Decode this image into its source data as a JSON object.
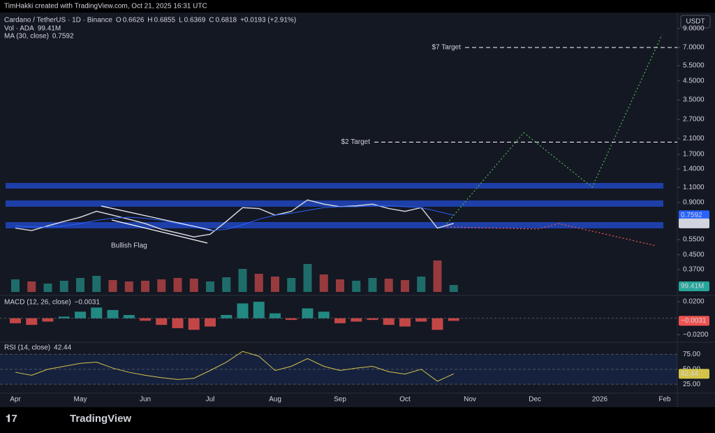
{
  "header": {
    "watermark": "TimHakki created with TradingView.com, Oct 21, 2025 16:31 UTC",
    "ohlc": [
      {
        "label": "O",
        "value": 0.6626
      },
      {
        "label": "H",
        "value": 0.6855
      },
      {
        "label": "L",
        "value": 0.6369
      },
      {
        "label": "C",
        "value": 0.6818
      }
    ],
    "change": "+0.0193 (+2.91%)",
    "vol_label": "Vol · ADA",
    "vol_value": "99.41M",
    "ma_value": 0.7592,
    "currency": "USDT",
    "logo": "TradingView"
  },
  "chart_data": [
    {
      "type": "line",
      "log": true,
      "categories": [
        "Apr",
        null,
        null,
        null,
        "May",
        null,
        null,
        null,
        "Jun",
        null,
        null,
        null,
        "Jul",
        null,
        null,
        null,
        "Aug",
        null,
        null,
        null,
        "Sep",
        null,
        null,
        null,
        "Oct",
        null,
        null,
        null,
        "Nov",
        null,
        null,
        null,
        "Dec",
        null,
        null,
        null,
        "2026",
        null,
        null,
        null,
        "Feb"
      ],
      "series": [
        {
          "name": "Cardano / TetherUS · 1D · Binance",
          "color": "#d1d4dc",
          "values": [
            0.64,
            0.62,
            0.66,
            0.7,
            0.74,
            0.8,
            0.76,
            0.72,
            0.68,
            0.63,
            0.6,
            0.57,
            0.59,
            0.7,
            0.84,
            0.83,
            0.76,
            0.8,
            0.93,
            0.88,
            0.85,
            0.86,
            0.88,
            0.83,
            0.8,
            0.84,
            0.64,
            0.6818,
            null,
            null,
            null,
            null,
            null,
            null,
            null,
            null,
            null,
            null,
            null,
            null,
            null
          ]
        },
        {
          "name": "MA (30, close)",
          "color": "#2962ff",
          "values": [
            0.66,
            0.65,
            0.65,
            0.66,
            0.68,
            0.71,
            0.73,
            0.74,
            0.73,
            0.71,
            0.68,
            0.65,
            0.62,
            0.63,
            0.67,
            0.72,
            0.76,
            0.78,
            0.81,
            0.84,
            0.85,
            0.85,
            0.86,
            0.86,
            0.85,
            0.84,
            0.8,
            0.7592,
            null,
            null,
            null,
            null,
            null,
            null,
            null,
            null,
            null,
            null,
            null,
            null,
            null
          ]
        }
      ],
      "ylim": [
        0.27,
        9.5
      ],
      "yticks": [
        {
          "value": 9,
          "label": "9.0000"
        },
        {
          "value": 7,
          "label": "7.0000"
        },
        {
          "value": 5.5,
          "label": "5.5000"
        },
        {
          "value": 4.5,
          "label": "4.5000"
        },
        {
          "value": 3.5,
          "label": "3.5000"
        },
        {
          "value": 2.7,
          "label": "2.7000"
        },
        {
          "value": 2.1,
          "label": "2.1000"
        },
        {
          "value": 1.7,
          "label": "1.7000"
        },
        {
          "value": 1.4,
          "label": "1.4000"
        },
        {
          "value": 1.1,
          "label": "1.1000"
        },
        {
          "value": 0.9,
          "label": "0.9000"
        },
        {
          "value": 0.55,
          "label": "0.5500"
        },
        {
          "value": 0.45,
          "label": "0.4500"
        },
        {
          "value": 0.37,
          "label": "0.3700"
        }
      ],
      "annotations": [
        {
          "text": "$7 Target",
          "value": 7
        },
        {
          "text": "$2 Target",
          "value": 2
        },
        {
          "text": "Bullish Flag"
        }
      ]
    },
    {
      "type": "bar",
      "up_color": "#26a69a",
      "down_color": "#ef5350",
      "values": [
        180,
        150,
        120,
        160,
        200,
        230,
        170,
        150,
        160,
        180,
        200,
        190,
        150,
        210,
        330,
        260,
        220,
        200,
        400,
        250,
        180,
        160,
        200,
        190,
        170,
        220,
        450,
        99.41
      ],
      "ylim": [
        0,
        500
      ]
    },
    {
      "type": "bar",
      "title": "MACD (12, 26, close)",
      "current": "−0.0031",
      "up_color": "#26a69a",
      "down_color": "#ef5350",
      "values": [
        -0.006,
        -0.008,
        -0.004,
        0.002,
        0.008,
        0.013,
        0.01,
        0.004,
        -0.003,
        -0.008,
        -0.012,
        -0.014,
        -0.01,
        0.004,
        0.018,
        0.02,
        0.006,
        -0.002,
        0.012,
        0.008,
        -0.006,
        -0.004,
        -0.002,
        -0.008,
        -0.01,
        -0.004,
        -0.014,
        -0.0031
      ],
      "ylim": [
        -0.029,
        0.026
      ],
      "yticks": [
        {
          "value": 0.02,
          "label": "0.0200"
        },
        {
          "value": -0.02,
          "label": "−0.0200"
        }
      ]
    },
    {
      "type": "line",
      "title": "RSI (14, close)",
      "current": 42.44,
      "color": "#d4c34a",
      "values": [
        45,
        40,
        50,
        55,
        60,
        62,
        52,
        45,
        40,
        36,
        33,
        35,
        48,
        62,
        80,
        72,
        48,
        55,
        68,
        55,
        48,
        52,
        55,
        46,
        42,
        50,
        30,
        42.44
      ],
      "ylim": [
        10,
        93
      ],
      "yticks": [
        {
          "value": 75,
          "label": "75.00"
        },
        {
          "value": 50,
          "label": "50.00"
        },
        {
          "value": 25,
          "label": "25.00"
        }
      ]
    }
  ]
}
